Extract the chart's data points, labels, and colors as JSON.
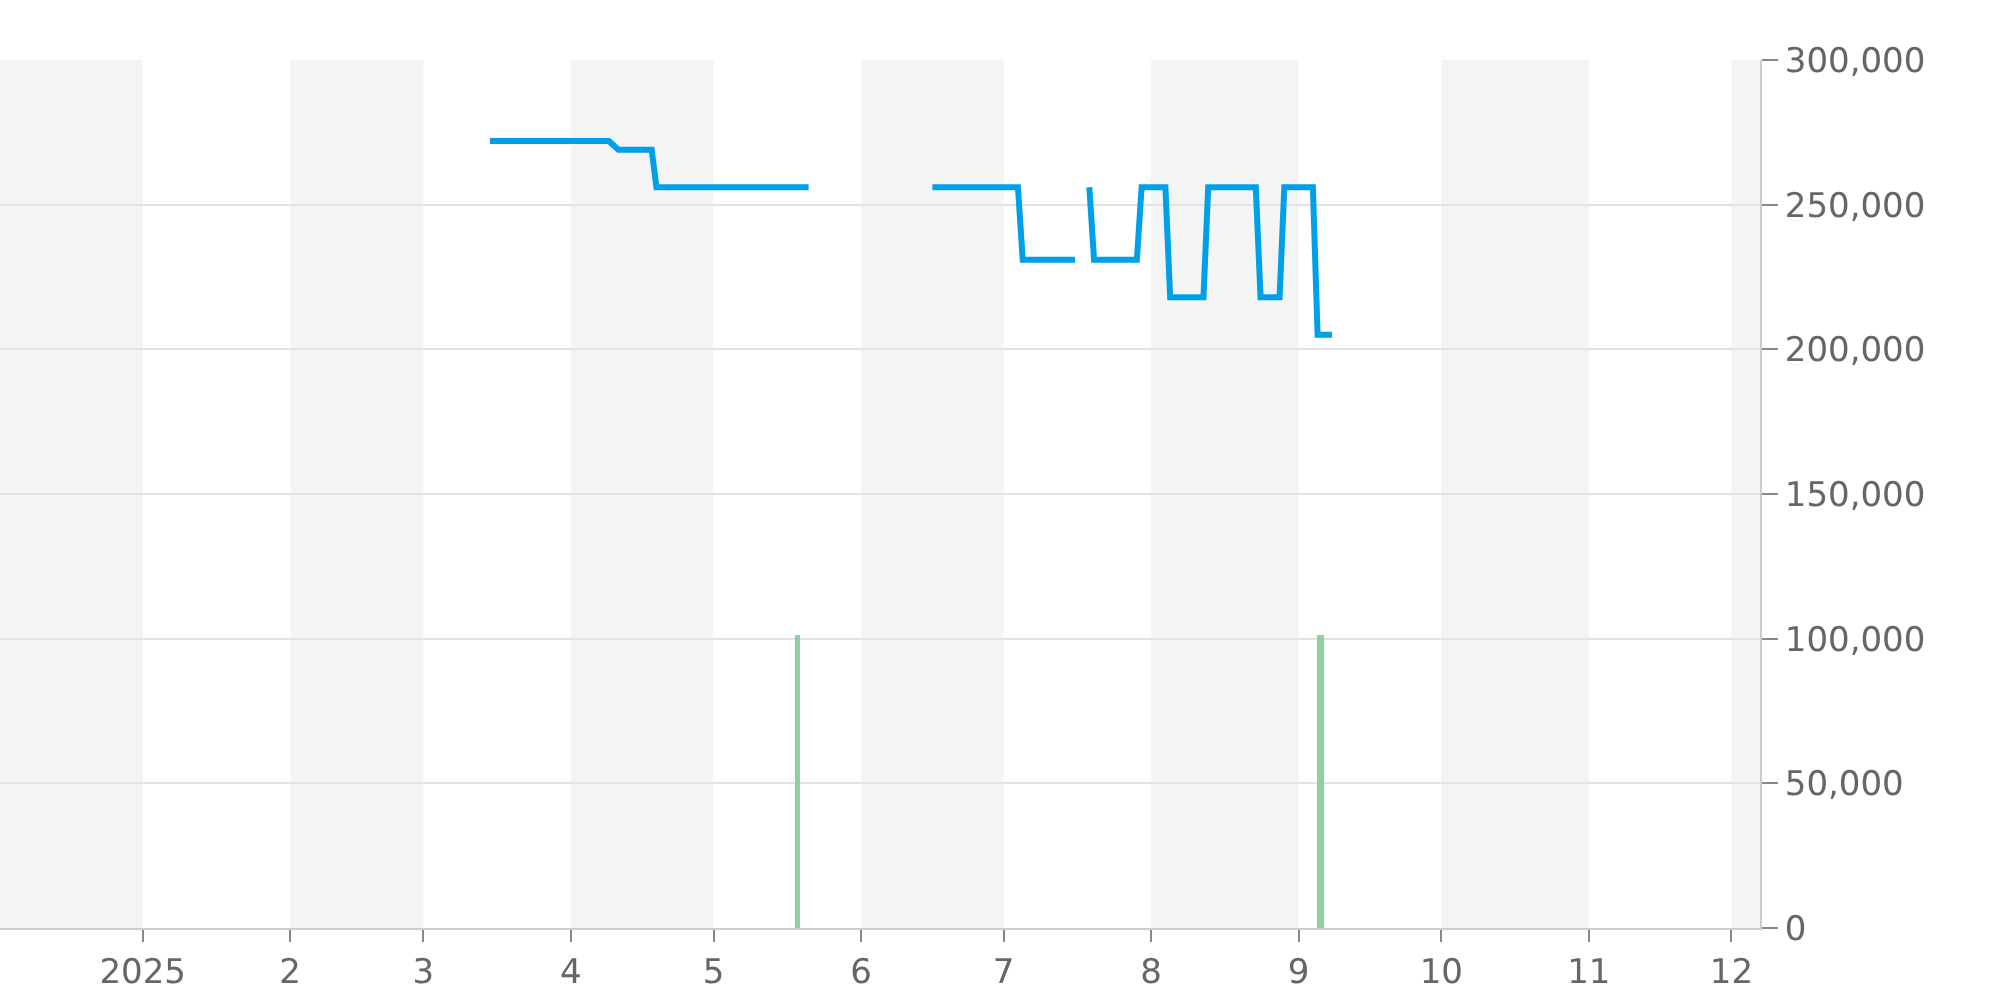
{
  "chart_data": {
    "type": "line",
    "series": [
      {
        "color": "#00a0e9",
        "x": [
          "2025-03-15",
          "2025-04-09",
          "2025-04-11",
          "2025-04-18",
          "2025-04-19",
          "2025-05-21",
          "2025-06-01",
          "2025-06-16",
          "2025-07-04",
          "2025-07-05",
          "2025-07-16",
          "2025-07-17",
          "2025-07-19",
          "2025-07-20",
          "2025-07-29",
          "2025-07-30",
          "2025-08-04",
          "2025-08-05",
          "2025-08-12",
          "2025-08-13",
          "2025-08-23",
          "2025-08-24",
          "2025-08-28",
          "2025-08-29",
          "2025-09-04",
          "2025-09-05",
          "2025-09-08"
        ],
        "values": [
          272000,
          272000,
          269000,
          269000,
          256000,
          256000,
          null,
          256000,
          256000,
          231000,
          231000,
          null,
          256000,
          231000,
          231000,
          256000,
          256000,
          218000,
          218000,
          256000,
          256000,
          218000,
          218000,
          256000,
          256000,
          205000,
          205000
        ]
      },
      {
        "type": "bar",
        "color": "#8fd19e",
        "x": [
          "2025-05-19",
          "2025-09-06"
        ],
        "values": [
          100000,
          100000
        ]
      }
    ],
    "xlim": [
      "2024-12-02",
      "2025-12-07"
    ],
    "xticks": [
      {
        "value": "2025-01-01",
        "label": "2025"
      },
      {
        "value": "2025-02-01",
        "label": "2"
      },
      {
        "value": "2025-03-01",
        "label": "3"
      },
      {
        "value": "2025-04-01",
        "label": "4"
      },
      {
        "value": "2025-05-01",
        "label": "5"
      },
      {
        "value": "2025-06-01",
        "label": "6"
      },
      {
        "value": "2025-07-01",
        "label": "7"
      },
      {
        "value": "2025-08-01",
        "label": "8"
      },
      {
        "value": "2025-09-01",
        "label": "9"
      },
      {
        "value": "2025-10-01",
        "label": "10"
      },
      {
        "value": "2025-11-01",
        "label": "11"
      },
      {
        "value": "2025-12-01",
        "label": "12"
      }
    ],
    "ylim": [
      0,
      300000
    ],
    "yticks": [
      {
        "value": 0,
        "label": "0"
      },
      {
        "value": 50000,
        "label": "50,000"
      },
      {
        "value": 100000,
        "label": "100,000"
      },
      {
        "value": 150000,
        "label": "150,000"
      },
      {
        "value": 200000,
        "label": "200,000"
      },
      {
        "value": 250000,
        "label": "250,000"
      },
      {
        "value": 300000,
        "label": "300,000"
      }
    ],
    "grid": "y",
    "bands": [
      {
        "axis": "x",
        "from": "2024-12-02",
        "to": "2025-01-01",
        "color": "#f4f4f4"
      },
      {
        "axis": "x",
        "from": "2025-02-01",
        "to": "2025-03-01",
        "color": "#f4f4f4"
      },
      {
        "axis": "x",
        "from": "2025-04-01",
        "to": "2025-05-01",
        "color": "#f4f4f4"
      },
      {
        "axis": "x",
        "from": "2025-06-01",
        "to": "2025-07-01",
        "color": "#f4f4f4"
      },
      {
        "axis": "x",
        "from": "2025-08-01",
        "to": "2025-09-01",
        "color": "#f4f4f4"
      },
      {
        "axis": "x",
        "from": "2025-10-01",
        "to": "2025-11-01",
        "color": "#f4f4f4"
      },
      {
        "axis": "x",
        "from": "2025-12-01",
        "to": "2025-12-07",
        "color": "#f4f4f4"
      }
    ]
  }
}
